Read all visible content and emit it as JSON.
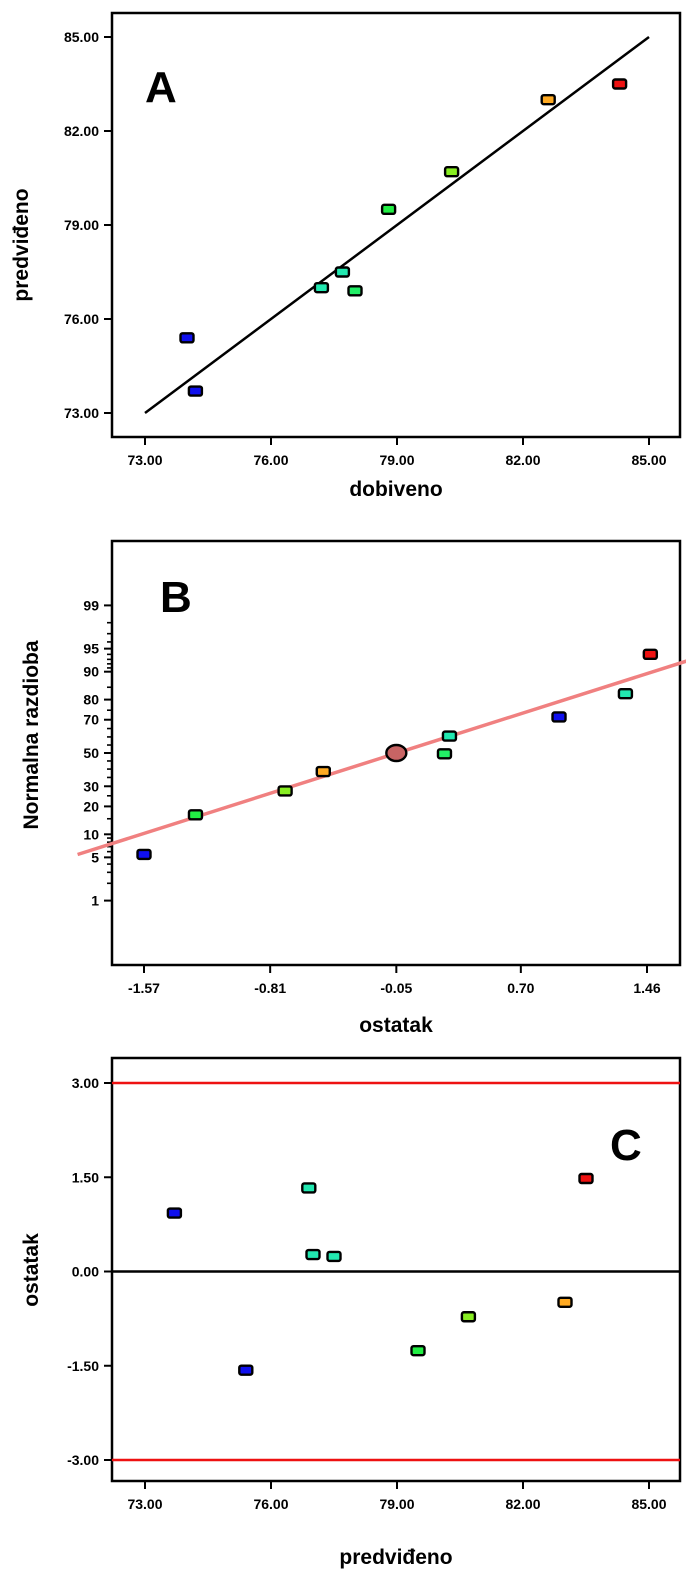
{
  "chart_data": [
    {
      "panel": "A",
      "type": "scatter",
      "xlabel": "dobiveno",
      "ylabel": "predviđeno",
      "xlim": [
        73,
        85
      ],
      "ylim": [
        73,
        85
      ],
      "xticks": [
        "73.00",
        "76.00",
        "79.00",
        "82.00",
        "85.00"
      ],
      "yticks": [
        "73.00",
        "76.00",
        "79.00",
        "82.00",
        "85.00"
      ],
      "grid": false,
      "line": [
        [
          73,
          73
        ],
        [
          85,
          85
        ]
      ],
      "line_color": "#000000",
      "points": [
        {
          "x": 74.0,
          "y": 75.4,
          "color": "#1010ee"
        },
        {
          "x": 74.2,
          "y": 73.7,
          "color": "#1010ee"
        },
        {
          "x": 77.2,
          "y": 77.0,
          "color": "#22e8b0"
        },
        {
          "x": 77.7,
          "y": 77.5,
          "color": "#22e8b0"
        },
        {
          "x": 78.0,
          "y": 76.9,
          "color": "#22ee66"
        },
        {
          "x": 78.8,
          "y": 79.5,
          "color": "#22ee44"
        },
        {
          "x": 80.3,
          "y": 80.7,
          "color": "#88ee22"
        },
        {
          "x": 82.6,
          "y": 83.0,
          "color": "#ffaa22"
        },
        {
          "x": 84.3,
          "y": 83.5,
          "color": "#ee1111"
        }
      ]
    },
    {
      "panel": "B",
      "type": "scatter",
      "xlabel": "ostatak",
      "ylabel": "Normalna razdioba",
      "xlim": [
        -1.57,
        1.46
      ],
      "ylim": [
        -2.9,
        2.9
      ],
      "xticks": [
        "-1.57",
        "-0.81",
        "-0.05",
        "0.70",
        "1.46"
      ],
      "yticks": [
        "1",
        "5",
        "10",
        "20",
        "30",
        "50",
        "70",
        "80",
        "90",
        "95",
        "99"
      ],
      "grid": false,
      "line": [
        [
          -1.97,
          -1.6
        ],
        [
          2.0,
          1.7
        ]
      ],
      "line_color": "#f08080",
      "center_marker": {
        "x": -0.05,
        "y": 0.0,
        "color": "#c86464"
      },
      "points": [
        {
          "x": -1.57,
          "y": 5.5,
          "color": "#1010ee"
        },
        {
          "x": -1.26,
          "y": 16.5,
          "color": "#22ee44"
        },
        {
          "x": -0.72,
          "y": 27.5,
          "color": "#88ee22"
        },
        {
          "x": -0.49,
          "y": 38.5,
          "color": "#ffaa22"
        },
        {
          "x": 0.24,
          "y": 49.5,
          "color": "#22ee66"
        },
        {
          "x": 0.27,
          "y": 60.5,
          "color": "#22e8b0"
        },
        {
          "x": 0.93,
          "y": 71.5,
          "color": "#1010ee"
        },
        {
          "x": 1.33,
          "y": 82.5,
          "color": "#22e8b0"
        },
        {
          "x": 1.48,
          "y": 94.0,
          "color": "#ee1111"
        }
      ]
    },
    {
      "panel": "C",
      "type": "scatter",
      "xlabel": "predviđeno",
      "ylabel": "ostatak",
      "xlim": [
        73,
        85
      ],
      "ylim": [
        -3.3,
        4.0
      ],
      "xticks": [
        "73.00",
        "76.00",
        "79.00",
        "82.00",
        "85.00"
      ],
      "yticks": [
        "3.00",
        "1.50",
        "0.00",
        "-1.50",
        "-3.00"
      ],
      "grid": false,
      "hlines": [
        {
          "y": 3.0,
          "color": "#ee1111"
        },
        {
          "y": 0.0,
          "color": "#000000"
        },
        {
          "y": -3.0,
          "color": "#ee1111"
        }
      ],
      "points": [
        {
          "x": 73.7,
          "y": 0.93,
          "color": "#1010ee"
        },
        {
          "x": 75.4,
          "y": -1.57,
          "color": "#1010ee"
        },
        {
          "x": 76.9,
          "y": 1.33,
          "color": "#22e8b0"
        },
        {
          "x": 77.0,
          "y": 0.27,
          "color": "#22e8b0"
        },
        {
          "x": 77.5,
          "y": 0.24,
          "color": "#22e8b0"
        },
        {
          "x": 79.5,
          "y": -1.26,
          "color": "#22ee44"
        },
        {
          "x": 80.7,
          "y": -0.72,
          "color": "#88ee22"
        },
        {
          "x": 83.0,
          "y": -0.49,
          "color": "#ffaa22"
        },
        {
          "x": 83.5,
          "y": 1.48,
          "color": "#ee1111"
        }
      ]
    }
  ]
}
